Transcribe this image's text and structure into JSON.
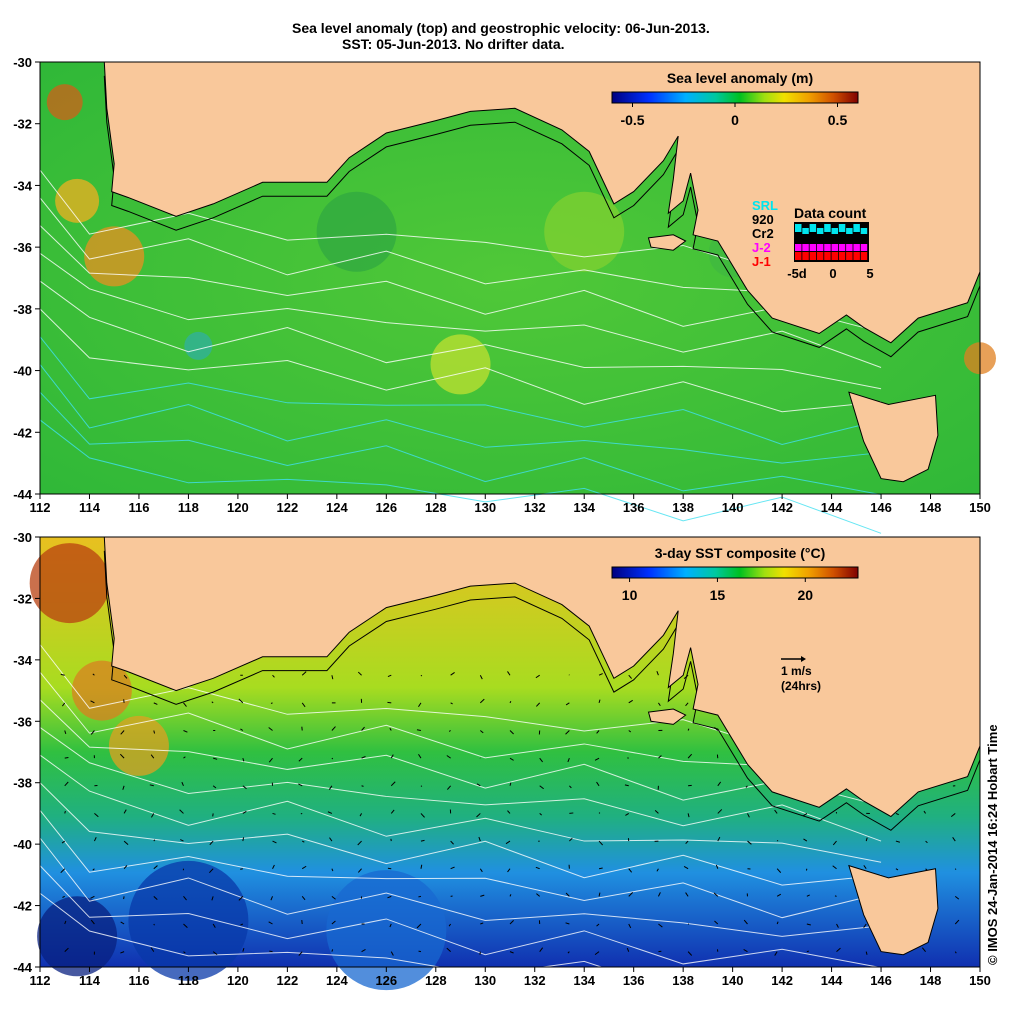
{
  "title": {
    "line1": "Sea level anomaly (top) and geostrophic velocity: 06-Jun-2013.",
    "line2": "SST: 05-Jun-2013. No drifter data."
  },
  "axes": {
    "lon_ticks": [
      "112",
      "114",
      "116",
      "118",
      "120",
      "122",
      "124",
      "126",
      "128",
      "130",
      "132",
      "134",
      "136",
      "138",
      "140",
      "142",
      "144",
      "146",
      "148",
      "150"
    ],
    "lat_ticks": [
      "-30",
      "-32",
      "-34",
      "-36",
      "-38",
      "-40",
      "-42",
      "-44"
    ]
  },
  "top_panel": {
    "colorbar_label": "Sea level anomaly (m)",
    "colorbar_range": [
      -0.6,
      0.6
    ],
    "colorbar_ticks": [
      "-0.5",
      "0",
      "0.5"
    ],
    "data_count": {
      "title": "Data count",
      "sources": [
        {
          "label": "SRL",
          "color": "#00e5ee"
        },
        {
          "label": "920",
          "color": "#000000"
        },
        {
          "label": "Cr2",
          "color": "#000000"
        },
        {
          "label": "J-2",
          "color": "#ff00ff"
        },
        {
          "label": "J-1",
          "color": "#ff0000"
        }
      ],
      "axis_labels": [
        "-5d",
        "0",
        "5"
      ]
    }
  },
  "bottom_panel": {
    "colorbar_label": "3-day SST composite (°C)",
    "colorbar_range": [
      9,
      23
    ],
    "colorbar_ticks": [
      "10",
      "15",
      "20"
    ],
    "velocity_scale": "1 m/s",
    "velocity_scale_note": "(24hrs)"
  },
  "credit": "© IMOS 24-Jan-2014 16:24 Hobart Time",
  "colors": {
    "land": "#f9c89b",
    "ocean_mid": "#22c33a"
  }
}
